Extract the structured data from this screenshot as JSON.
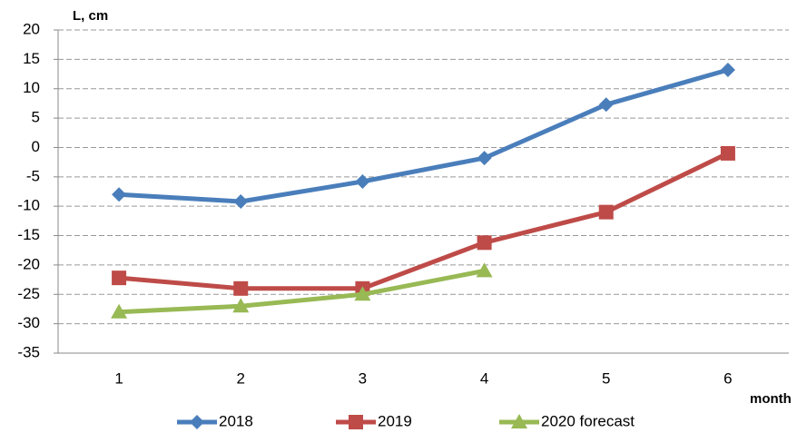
{
  "chart_data": {
    "type": "line",
    "y_label": "L, cm",
    "x_label": "month",
    "categories": [
      1,
      2,
      3,
      4,
      5,
      6
    ],
    "series": [
      {
        "name": "2018",
        "color": "#4a7ebb",
        "marker": "diamond",
        "values": [
          -8,
          -9.2,
          -5.8,
          -1.8,
          7.3,
          13.2
        ]
      },
      {
        "name": "2019",
        "color": "#be4b48",
        "marker": "square",
        "values": [
          -22.2,
          -24,
          -24,
          -16.2,
          -11,
          -1
        ]
      },
      {
        "name": "2020 forecast",
        "color": "#98b954",
        "marker": "triangle",
        "values": [
          -28,
          -27,
          -25,
          -21,
          null,
          null
        ]
      }
    ],
    "ylim": [
      -35,
      20
    ],
    "yticks": [
      -35,
      -30,
      -25,
      -20,
      -15,
      -10,
      -5,
      0,
      5,
      10,
      15,
      20
    ],
    "grid": true,
    "legend": "bottom"
  }
}
